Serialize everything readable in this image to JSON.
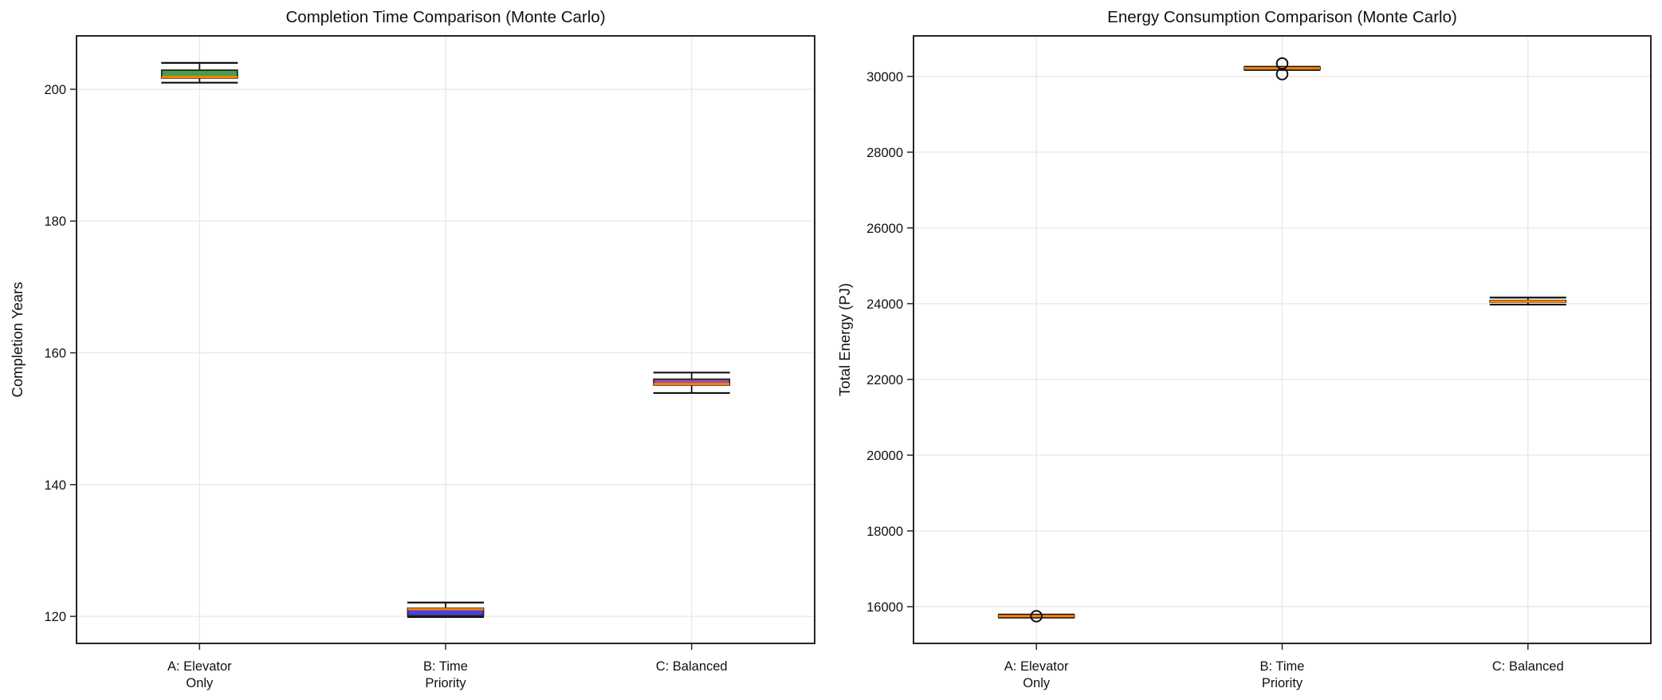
{
  "page": {
    "background": "#ffffff",
    "text_color": "#111111",
    "spine_color": "#262626",
    "grid_color": "#e7e7e7"
  },
  "chart_data": [
    {
      "type": "box",
      "title": "Completion Time Comparison (Monte Carlo)",
      "ylabel": "Completion Years",
      "xlabel": "",
      "categories": [
        "A: Elevator\nOnly",
        "B: Time\nPriority",
        "C: Balanced"
      ],
      "ylim": [
        115.9,
        208.1
      ],
      "yticks": [
        120,
        140,
        160,
        180,
        200
      ],
      "grid": true,
      "legend": "none",
      "median_color": "#ff8000",
      "boxes": [
        {
          "label": "A: Elevator Only",
          "color": "#4a9d4a",
          "whislo": 201.0,
          "q1": 201.7,
          "med": 201.85,
          "q3": 202.9,
          "whishi": 204.0,
          "fliers": []
        },
        {
          "label": "B: Time Priority",
          "color": "#4444e0",
          "whislo": 119.9,
          "q1": 120.1,
          "med": 121.1,
          "q3": 121.25,
          "whishi": 122.1,
          "fliers": []
        },
        {
          "label": "C: Balanced",
          "color": "#9d4f9d",
          "whislo": 153.9,
          "q1": 155.1,
          "med": 155.25,
          "q3": 156.0,
          "whishi": 157.0,
          "fliers": []
        }
      ]
    },
    {
      "type": "box",
      "title": "Energy Consumption Comparison (Monte Carlo)",
      "ylabel": "Total Energy (PJ)",
      "xlabel": "",
      "categories": [
        "A: Elevator\nOnly",
        "B: Time\nPriority",
        "C: Balanced"
      ],
      "ylim": [
        15030,
        31070
      ],
      "yticks": [
        16000,
        18000,
        20000,
        22000,
        24000,
        26000,
        28000,
        30000
      ],
      "grid": true,
      "legend": "none",
      "median_color": "#ff8000",
      "boxes": [
        {
          "label": "A: Elevator Only",
          "color": "#4a9d4a",
          "whislo": 15710,
          "q1": 15740,
          "med": 15750,
          "q3": 15762,
          "whishi": 15790,
          "fliers": [
            15748
          ]
        },
        {
          "label": "B: Time Priority",
          "color": "#4444e0",
          "whislo": 30170,
          "q1": 30195,
          "med": 30215,
          "q3": 30235,
          "whishi": 30255,
          "fliers": [
            30340,
            30060
          ]
        },
        {
          "label": "C: Balanced",
          "color": "#9d4f9d",
          "whislo": 23975,
          "q1": 24040,
          "med": 24060,
          "q3": 24085,
          "whishi": 24160,
          "fliers": []
        }
      ]
    }
  ]
}
